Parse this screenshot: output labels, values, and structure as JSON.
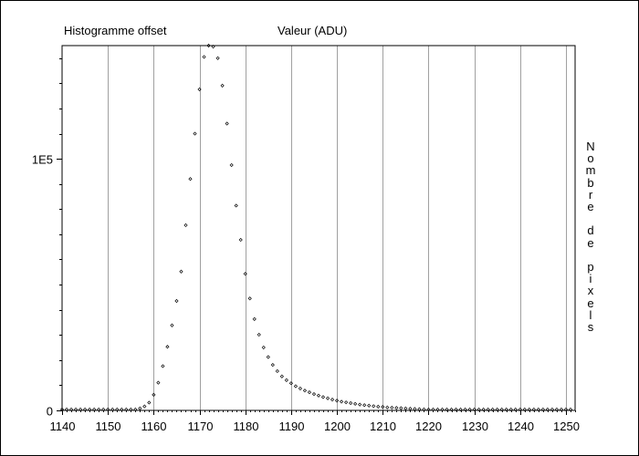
{
  "chart_data": {
    "type": "scatter",
    "title": "Histogramme offset",
    "xlabel": "Valeur (ADU)",
    "ylabel": "Nombre de pixels",
    "ylabel_vertical": "N\no\nm\nb\nr\ne\n\nd\ne\n\np\ni\nx\ne\nl\ns",
    "xlim": [
      1140,
      1252
    ],
    "ylim": [
      0,
      145000
    ],
    "xticks": [
      1140,
      1150,
      1160,
      1170,
      1180,
      1190,
      1200,
      1210,
      1220,
      1230,
      1240,
      1250
    ],
    "xtick_labels": [
      "1140",
      "1150",
      "1160",
      "1170",
      "1180",
      "1190",
      "1200",
      "1210",
      "1220",
      "1230",
      "1240",
      "1250"
    ],
    "yticks": [
      0,
      100000
    ],
    "ytick_labels": [
      "0",
      "1E5"
    ],
    "grid": "vertical",
    "marker_color": "#000000",
    "grid_color": "#a0a0a0",
    "x": [
      1140,
      1141,
      1142,
      1143,
      1144,
      1145,
      1146,
      1147,
      1148,
      1149,
      1150,
      1151,
      1152,
      1153,
      1154,
      1155,
      1156,
      1157,
      1158,
      1159,
      1160,
      1161,
      1162,
      1163,
      1164,
      1165,
      1166,
      1167,
      1168,
      1169,
      1170,
      1171,
      1172,
      1173,
      1174,
      1175,
      1176,
      1177,
      1178,
      1179,
      1180,
      1181,
      1182,
      1183,
      1184,
      1185,
      1186,
      1187,
      1188,
      1189,
      1190,
      1191,
      1192,
      1193,
      1194,
      1195,
      1196,
      1197,
      1198,
      1199,
      1200,
      1201,
      1202,
      1203,
      1204,
      1205,
      1206,
      1207,
      1208,
      1209,
      1210,
      1211,
      1212,
      1213,
      1214,
      1215,
      1216,
      1217,
      1218,
      1219,
      1220,
      1221,
      1222,
      1223,
      1224,
      1225,
      1226,
      1227,
      1228,
      1229,
      1230,
      1231,
      1232,
      1233,
      1234,
      1235,
      1236,
      1237,
      1238,
      1239,
      1240,
      1241,
      1242,
      1243,
      1244,
      1245,
      1246,
      1247,
      1248,
      1249,
      1250,
      1251
    ],
    "y": [
      0,
      0,
      0,
      0,
      0,
      0,
      0,
      0,
      0,
      0,
      0,
      0,
      0,
      0,
      0,
      0,
      300,
      800,
      1600,
      3100,
      6200,
      11000,
      17600,
      25300,
      33800,
      43500,
      55200,
      73600,
      92000,
      110000,
      127600,
      140500,
      145000,
      144600,
      140000,
      129100,
      114000,
      97500,
      81400,
      67800,
      54300,
      44500,
      36300,
      30100,
      25000,
      21200,
      18100,
      15600,
      13500,
      12000,
      10800,
      9600,
      8700,
      7900,
      7200,
      6500,
      5900,
      5300,
      4800,
      4300,
      3900,
      3500,
      3200,
      2900,
      2600,
      2300,
      2100,
      1900,
      1700,
      1500,
      1400,
      1200,
      1100,
      1000,
      900,
      800,
      700,
      600,
      500,
      400,
      300,
      200,
      200,
      100,
      100,
      0,
      0,
      0,
      0,
      0,
      0,
      0,
      0,
      0,
      0,
      0,
      0,
      0,
      0,
      0,
      0,
      0,
      0,
      0,
      0,
      0,
      0,
      0,
      0,
      0,
      0,
      0
    ]
  }
}
